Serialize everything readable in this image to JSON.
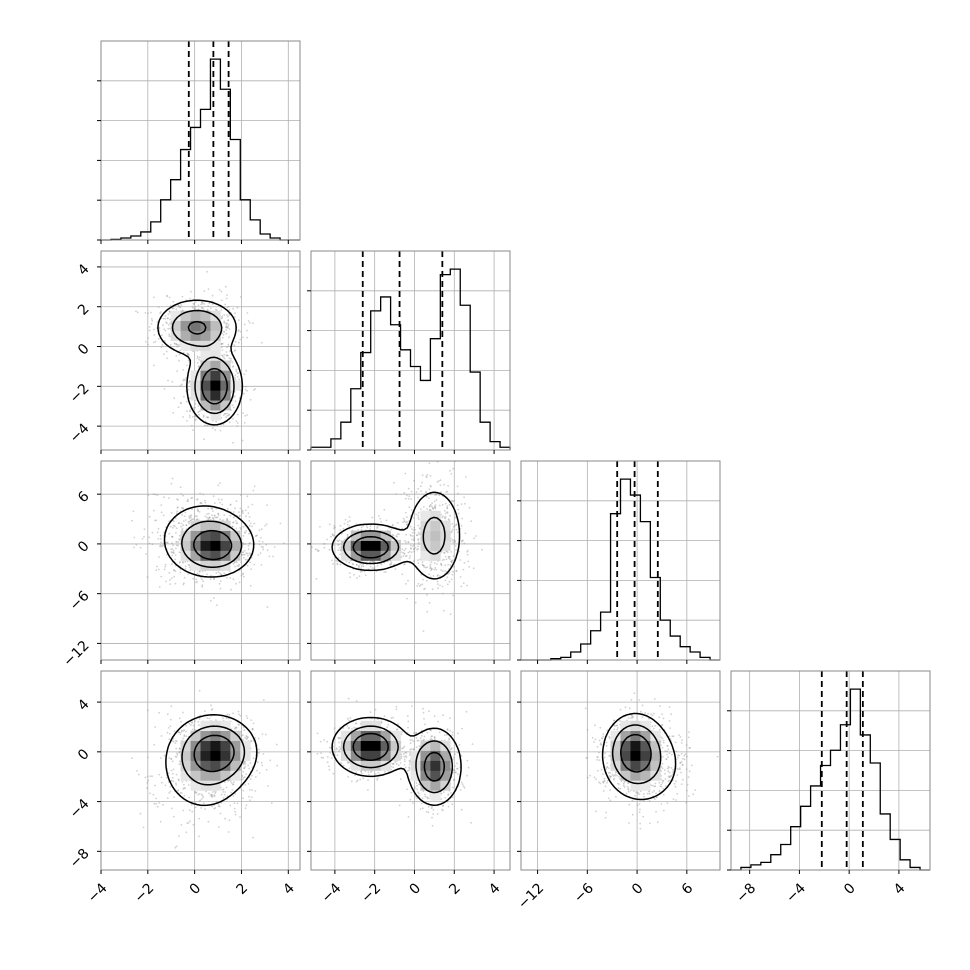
{
  "chart_data": {
    "type": "corner",
    "title": "",
    "n_params": 4,
    "colors": {
      "line": "#000000",
      "grid": "#b0b0b0",
      "points": "#9a9a9a",
      "frame": "#8a8a8a"
    },
    "params": [
      {
        "range": [
          -4,
          4.5
        ],
        "ticks": [
          -4,
          -2,
          0,
          2,
          4
        ],
        "tick_labels": [
          "−4",
          "−2",
          "0",
          "2",
          "4"
        ]
      },
      {
        "range": [
          -5.2,
          4.8
        ],
        "ticks": [
          -4,
          -2,
          0,
          2,
          4
        ],
        "tick_labels": [
          "−4",
          "−2",
          "0",
          "2",
          "4"
        ]
      },
      {
        "range": [
          -14,
          10
        ],
        "ticks": [
          -12,
          -6,
          0,
          6
        ],
        "tick_labels": [
          "−12",
          "−6",
          "0",
          "6"
        ]
      },
      {
        "range": [
          -9.5,
          6.5
        ],
        "ticks": [
          -8,
          -4,
          0,
          4
        ],
        "tick_labels": [
          "−8",
          "−4",
          "0",
          "4"
        ]
      }
    ],
    "histograms": [
      {
        "counts": [
          0,
          0.3,
          1,
          2,
          4,
          9,
          20,
          30,
          45,
          56,
          65,
          90,
          75,
          50,
          20,
          10,
          3,
          1,
          0,
          0
        ],
        "quantiles": [
          -0.25,
          0.8,
          1.45
        ]
      },
      {
        "counts": [
          1,
          1,
          4,
          10,
          22,
          35,
          50,
          55,
          45,
          36,
          30,
          25,
          40,
          63,
          65,
          52,
          28,
          10,
          3,
          1
        ],
        "quantiles": [
          -2.6,
          -0.75,
          1.4
        ]
      },
      {
        "counts": [
          0,
          0,
          0,
          0.5,
          1,
          3,
          6,
          11,
          18,
          55,
          68,
          62,
          52,
          31,
          15,
          9,
          5,
          3,
          1,
          0
        ],
        "quantiles": [
          -2.4,
          -0.3,
          2.5
        ]
      },
      {
        "counts": [
          0,
          1,
          2,
          3,
          6,
          10,
          17,
          25,
          33,
          41,
          47,
          57,
          71,
          53,
          42,
          22,
          12,
          4,
          1,
          0
        ],
        "quantiles": [
          -2.2,
          -0.2,
          1.1
        ]
      }
    ],
    "pairs": [
      {
        "x": 0,
        "y": 1,
        "modes": [
          {
            "cx": 0.85,
            "cy": -2.0,
            "sx": 0.55,
            "sy": 0.9,
            "w": 0.55
          },
          {
            "cx": 0.1,
            "cy": 0.95,
            "sx": 0.85,
            "sy": 0.7,
            "w": 0.45
          }
        ]
      },
      {
        "x": 0,
        "y": 2,
        "modes": [
          {
            "cx": 0.85,
            "cy": -0.3,
            "sx": 0.75,
            "sy": 1.6,
            "w": 0.55
          },
          {
            "cx": 0.35,
            "cy": 0.8,
            "sx": 1.1,
            "sy": 2.6,
            "w": 0.45
          }
        ]
      },
      {
        "x": 0,
        "y": 3,
        "modes": [
          {
            "cx": 0.95,
            "cy": 0.1,
            "sx": 0.8,
            "sy": 1.3,
            "w": 0.55
          },
          {
            "cx": 0.4,
            "cy": -1.2,
            "sx": 1.0,
            "sy": 2.0,
            "w": 0.45
          }
        ]
      },
      {
        "x": 1,
        "y": 2,
        "modes": [
          {
            "cx": -2.2,
            "cy": -0.4,
            "sx": 0.9,
            "sy": 1.3,
            "w": 0.55
          },
          {
            "cx": 1.0,
            "cy": 1.0,
            "sx": 0.75,
            "sy": 3.1,
            "w": 0.45
          }
        ]
      },
      {
        "x": 1,
        "y": 3,
        "modes": [
          {
            "cx": -2.2,
            "cy": 0.4,
            "sx": 0.9,
            "sy": 1.1,
            "w": 0.55
          },
          {
            "cx": 1.0,
            "cy": -1.2,
            "sx": 0.65,
            "sy": 1.5,
            "w": 0.45
          }
        ]
      },
      {
        "x": 2,
        "y": 3,
        "modes": [
          {
            "cx": -0.3,
            "cy": 0.1,
            "sx": 1.7,
            "sy": 1.4,
            "w": 0.6
          },
          {
            "cx": 0.8,
            "cy": -1.1,
            "sx": 2.6,
            "sy": 1.8,
            "w": 0.4
          }
        ]
      }
    ]
  }
}
